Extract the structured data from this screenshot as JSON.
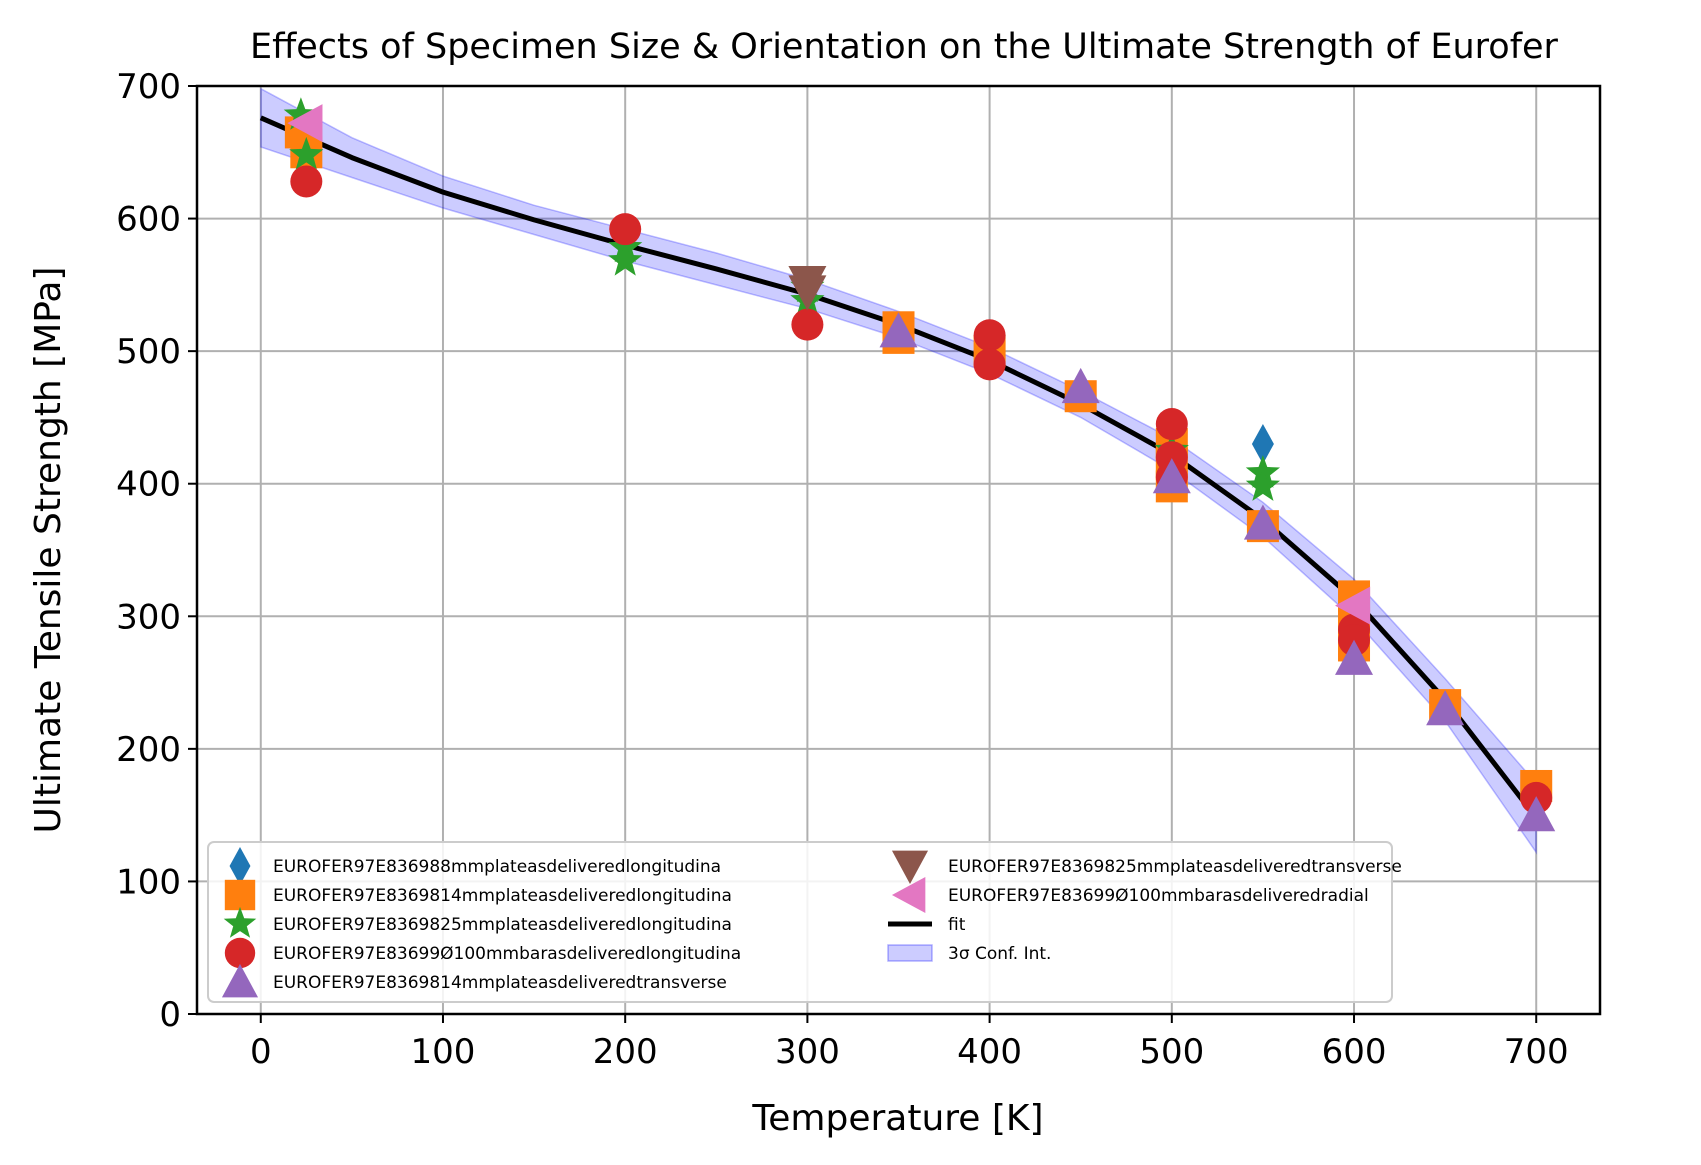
{
  "chart_data": {
    "type": "scatter",
    "title": "Effects of Specimen Size & Orientation on the Ultimate Strength of Eurofer",
    "xlabel": "Temperature [K]",
    "ylabel": "Ultimate Tensile Strength [MPa]",
    "xlim": [
      -35,
      735
    ],
    "ylim": [
      0,
      700
    ],
    "xticks": [
      0,
      100,
      200,
      300,
      400,
      500,
      600,
      700
    ],
    "yticks": [
      0,
      100,
      200,
      300,
      400,
      500,
      600,
      700
    ],
    "grid": true,
    "legend_position": "lower-left",
    "series": [
      {
        "name": "EUROFER97E836988mmplateasdeliveredlongitudina",
        "marker": "thin_diamond",
        "color": "#1f77b4",
        "points": [
          [
            550,
            430
          ]
        ]
      },
      {
        "name": "EUROFER97E8369814mmplateasdeliveredlongitudina",
        "marker": "square",
        "color": "#ff7f0e",
        "points": [
          [
            22,
            665
          ],
          [
            25,
            650
          ],
          [
            350,
            518
          ],
          [
            350,
            510
          ],
          [
            400,
            500
          ],
          [
            450,
            466
          ],
          [
            500,
            430
          ],
          [
            500,
            415
          ],
          [
            500,
            398
          ],
          [
            550,
            368
          ],
          [
            600,
            315
          ],
          [
            600,
            295
          ],
          [
            600,
            278
          ],
          [
            650,
            233
          ],
          [
            700,
            172
          ]
        ]
      },
      {
        "name": "EUROFER97E8369825mmplateasdeliveredlongitudina",
        "marker": "star",
        "color": "#2ca02c",
        "points": [
          [
            22,
            678
          ],
          [
            25,
            648
          ],
          [
            200,
            578
          ],
          [
            200,
            568
          ],
          [
            300,
            548
          ],
          [
            300,
            538
          ],
          [
            500,
            425
          ],
          [
            550,
            408
          ],
          [
            550,
            398
          ]
        ]
      },
      {
        "name": "EUROFER97E83699Ø100mmbarasdeliveredlongitudina",
        "marker": "circle",
        "color": "#d62728",
        "points": [
          [
            25,
            628
          ],
          [
            200,
            592
          ],
          [
            300,
            520
          ],
          [
            400,
            512
          ],
          [
            400,
            490
          ],
          [
            500,
            445
          ],
          [
            500,
            420
          ],
          [
            500,
            405
          ],
          [
            600,
            290
          ],
          [
            600,
            282
          ],
          [
            700,
            163
          ]
        ]
      },
      {
        "name": "EUROFER97E8369814mmplateasdeliveredtransverse",
        "marker": "triangle_up",
        "color": "#9467bd",
        "points": [
          [
            350,
            515
          ],
          [
            450,
            473
          ],
          [
            500,
            405
          ],
          [
            550,
            370
          ],
          [
            600,
            268
          ],
          [
            650,
            230
          ],
          [
            700,
            150
          ]
        ]
      },
      {
        "name": "EUROFER97E8369825mmplateasdeliveredtransverse",
        "marker": "triangle_down",
        "color": "#8c564b",
        "points": [
          [
            300,
            552
          ],
          [
            300,
            545
          ]
        ]
      },
      {
        "name": "EUROFER97E83699Ø100mmbarasdeliveredradial",
        "marker": "triangle_left",
        "color": "#e377c2",
        "points": [
          [
            25,
            672
          ],
          [
            600,
            308
          ]
        ]
      }
    ],
    "fit": {
      "name": "fit",
      "color": "#000000",
      "x": [
        0,
        50,
        100,
        150,
        200,
        250,
        300,
        350,
        400,
        450,
        500,
        550,
        600,
        650,
        700
      ],
      "y": [
        676,
        646,
        620,
        599,
        580,
        562,
        543,
        520,
        493,
        460,
        422,
        373,
        313,
        237,
        148
      ]
    },
    "confidence_band": {
      "name": "3σ Conf. Int.",
      "color": "#0000ff",
      "x": [
        0,
        50,
        100,
        150,
        200,
        250,
        300,
        350,
        400,
        450,
        500,
        550,
        600,
        650,
        700
      ],
      "lower": [
        654,
        631,
        608,
        588,
        568,
        550,
        532,
        510,
        483,
        450,
        410,
        360,
        298,
        221,
        122
      ],
      "upper": [
        698,
        661,
        632,
        610,
        592,
        574,
        554,
        530,
        503,
        470,
        434,
        386,
        328,
        253,
        174
      ]
    }
  }
}
